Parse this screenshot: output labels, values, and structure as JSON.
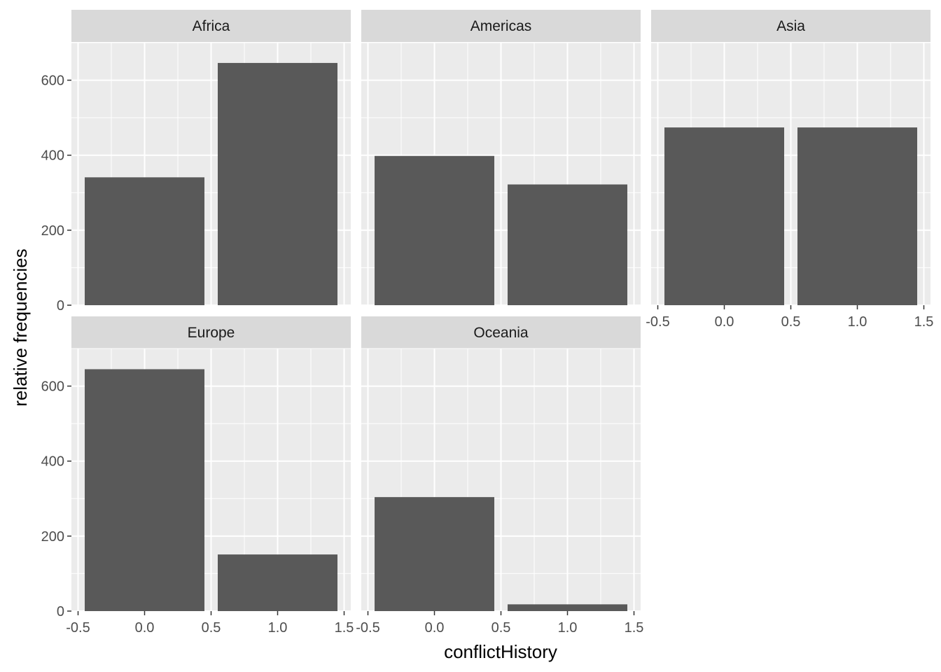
{
  "chart_data": {
    "type": "bar",
    "facet_layout": "wrap",
    "xlabel": "conflictHistory",
    "ylabel": "relative frequencies",
    "x_ticks": [
      -0.5,
      0.0,
      0.5,
      1.0,
      1.5
    ],
    "x_tick_labels": [
      "-0.5",
      "0.0",
      "0.5",
      "1.0",
      "1.5"
    ],
    "y_ticks": [
      0,
      200,
      400,
      600
    ],
    "y_tick_labels": [
      "0",
      "200",
      "400",
      "600"
    ],
    "xlim": [
      -0.55,
      1.55
    ],
    "ylim": [
      0,
      700
    ],
    "grid": true,
    "bar_color": "#595959",
    "panel_background": "#ebebeb",
    "strip_background": "#d9d9d9",
    "facets": [
      {
        "name": "Africa",
        "x": [
          0,
          1
        ],
        "values": [
          341,
          646
        ]
      },
      {
        "name": "Americas",
        "x": [
          0,
          1
        ],
        "values": [
          398,
          322
        ]
      },
      {
        "name": "Asia",
        "x": [
          0,
          1
        ],
        "values": [
          474,
          474
        ]
      },
      {
        "name": "Europe",
        "x": [
          0,
          1
        ],
        "values": [
          645,
          151
        ]
      },
      {
        "name": "Oceania",
        "x": [
          0,
          1
        ],
        "values": [
          304,
          18
        ]
      }
    ]
  }
}
